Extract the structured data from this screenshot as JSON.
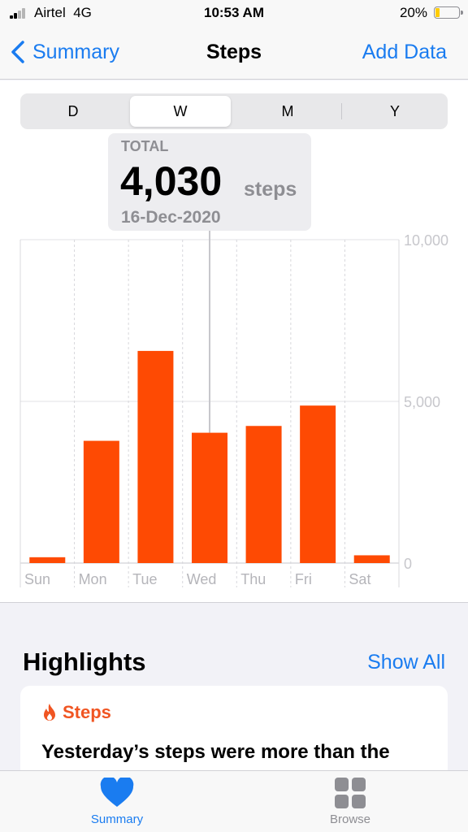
{
  "status_bar": {
    "carrier": "Airtel",
    "network": "4G",
    "time": "10:53 AM",
    "battery": "20%",
    "battery_level": 0.2
  },
  "nav": {
    "back_label": "Summary",
    "title": "Steps",
    "action_label": "Add Data"
  },
  "segments": [
    "D",
    "W",
    "M",
    "Y"
  ],
  "selected_segment": "W",
  "callout": {
    "label": "TOTAL",
    "value": "4,030",
    "unit": "steps",
    "date": "16-Dec-2020"
  },
  "chart_data": {
    "type": "bar",
    "categories": [
      "Sun",
      "Mon",
      "Tue",
      "Wed",
      "Thu",
      "Fri",
      "Sat"
    ],
    "values": [
      180,
      3780,
      6560,
      4030,
      4240,
      4870,
      240
    ],
    "selected_index": 3,
    "ylim": [
      0,
      10000
    ],
    "y_ticks": [
      0,
      5000,
      10000
    ],
    "y_tick_labels": [
      "0",
      "5,000",
      "10,000"
    ],
    "bar_color": "#fe4a03",
    "grid": true
  },
  "highlights": {
    "title": "Highlights",
    "show_all_label": "Show All",
    "card": {
      "category": "Steps",
      "text": "Yesterday’s steps were more than the"
    }
  },
  "tab_bar": {
    "items": [
      {
        "label": "Summary",
        "icon": "heart-icon",
        "active": true
      },
      {
        "label": "Browse",
        "icon": "grid-icon",
        "active": false
      }
    ]
  },
  "colors": {
    "accent": "#1a7cf0",
    "bar": "#fe4a03",
    "highlight_orange": "#f05522",
    "inactive": "#8e8e93"
  }
}
